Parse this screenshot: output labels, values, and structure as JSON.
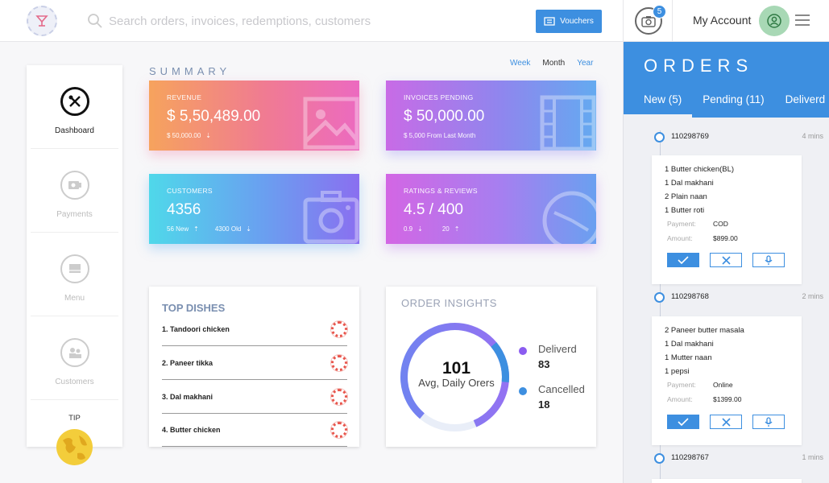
{
  "search": {
    "placeholder": "Search orders, invoices, redemptions, customers"
  },
  "header": {
    "vouchers_label": "Vouchers",
    "notification_count": "5",
    "account_label": "My Account"
  },
  "sidebar": {
    "items": [
      {
        "label": "Dashboard",
        "icon": "dashboard-icon",
        "active": true
      },
      {
        "label": "Payments",
        "icon": "payments-icon"
      },
      {
        "label": "Menu",
        "icon": "menu-book-icon"
      },
      {
        "label": "Customers",
        "icon": "customers-icon"
      }
    ],
    "tip_label": "TIP"
  },
  "summary": {
    "title": "SUMMARY",
    "periods": [
      "Week",
      "Month",
      "Year"
    ],
    "selected_period": "Month",
    "cards": [
      {
        "label": "REVENUE",
        "value": "$ 5,50,489.00",
        "sub1": "$ 50,000.00",
        "icon": "image-icon"
      },
      {
        "label": "INVOICES PENDING",
        "value": "$ 50,000.00",
        "sub1": "$ 5,000 From Last Month",
        "icon": "film-icon"
      },
      {
        "label": "CUSTOMERS",
        "value": "4356",
        "sub1": "56 New",
        "sub2": "4300 Old",
        "icon": "camera-icon"
      },
      {
        "label": "RATINGS & REVIEWS",
        "value": "4.5 / 400",
        "sub1": "0.9",
        "sub2": "20",
        "icon": "clock-icon"
      }
    ]
  },
  "top_dishes": {
    "title": "TOP DISHES",
    "items": [
      "1. Tandoori chicken",
      "2. Paneer tikka",
      "3. Dal makhani",
      "4. Butter chicken"
    ]
  },
  "insights": {
    "title": "ORDER INSIGHTS",
    "center_value": "101",
    "center_label": "Avg, Daily Orers",
    "legend": [
      {
        "name": "Deliverd",
        "count": "83",
        "color": "#8b5cf0"
      },
      {
        "name": "Cancelled",
        "count": "18",
        "color": "#3d8fe0"
      }
    ]
  },
  "orders": {
    "title": "ORDERS",
    "tabs": [
      {
        "label": "New",
        "count": "(5)"
      },
      {
        "label": "Pending",
        "count": "(11)"
      },
      {
        "label": "Deliverd",
        "count": ""
      }
    ],
    "list": [
      {
        "id": "110298769",
        "time": "4 mins",
        "items": [
          "1 Butter chicken(BL)",
          "1 Dal makhani",
          "2 Plain naan",
          "1 Butter roti"
        ],
        "payment": "COD",
        "amount": "$899.00"
      },
      {
        "id": "110298768",
        "time": "2 mins",
        "items": [
          "2 Paneer butter masala",
          "1 Dal makhani",
          "1 Mutter naan",
          "1 pepsi"
        ],
        "payment": "Online",
        "amount": "$1399.00"
      },
      {
        "id": "110298767",
        "time": "1 mins"
      }
    ],
    "payment_label": "Payment:",
    "amount_label": "Amount:"
  },
  "colors": {
    "accent": "#3d8fe0",
    "sidebar_bg": "#ffffff",
    "orders_bg": "#eff0f4"
  }
}
